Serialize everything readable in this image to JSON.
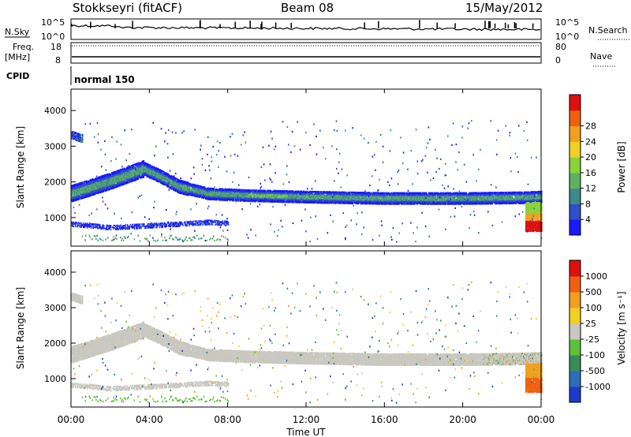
{
  "header": {
    "station": "Stokkseyri (fitACF)",
    "beam": "Beam 08",
    "date": "15/May/2012"
  },
  "chart_data": [
    {
      "type": "line",
      "panel": "noise",
      "left_label": "N.Sky",
      "right_label": "N.Search",
      "left_ticks": [
        "10^5",
        "10^0"
      ],
      "right_ticks": [
        "10^5",
        "10^0"
      ]
    },
    {
      "type": "line",
      "panel": "frequency",
      "left_label_line1": "Freq.",
      "left_label_line2": "[MHz]",
      "left_ticks": [
        18,
        8
      ],
      "right_label": "Nave",
      "right_ticks": [
        80,
        0
      ],
      "freq_value": 10.5
    },
    {
      "type": "table",
      "panel": "cpid",
      "label": "CPID",
      "mode": "normal 150"
    },
    {
      "type": "heatmap",
      "panel": "power",
      "ylabel": "Slant Range [km]",
      "yticks": [
        1000,
        2000,
        3000,
        4000
      ],
      "ylim": [
        200,
        4600
      ],
      "xlim": [
        0,
        24
      ],
      "colorbar": {
        "label": "Power [dB]",
        "ticks": [
          4,
          8,
          12,
          16,
          20,
          24,
          28
        ],
        "colors": [
          "#1a1aff",
          "#2e50c8",
          "#3c8a8a",
          "#5fb060",
          "#8ad23c",
          "#f0d020",
          "#f0a020",
          "#f06010",
          "#e01010"
        ]
      },
      "echo_bands": [
        {
          "name": "main",
          "points": [
            [
              0,
              1650
            ],
            [
              1,
              1820
            ],
            [
              2,
              2000
            ],
            [
              3,
              2200
            ],
            [
              3.7,
              2350
            ],
            [
              4.5,
              2150
            ],
            [
              5.5,
              1850
            ],
            [
              7,
              1650
            ],
            [
              9,
              1600
            ],
            [
              12,
              1560
            ],
            [
              16,
              1520
            ],
            [
              20,
              1520
            ],
            [
              23,
              1540
            ],
            [
              24,
              1560
            ]
          ]
        },
        {
          "name": "upper",
          "points": [
            [
              0,
              3300
            ],
            [
              0.5,
              3200
            ]
          ]
        },
        {
          "name": "low",
          "points": [
            [
              0,
              800
            ],
            [
              2,
              700
            ],
            [
              5,
              780
            ],
            [
              7,
              850
            ],
            [
              8,
              820
            ]
          ]
        }
      ]
    },
    {
      "type": "heatmap",
      "panel": "velocity",
      "ylabel": "Slant Range [km]",
      "xlabel": "Time UT",
      "yticks": [
        1000,
        2000,
        3000,
        4000
      ],
      "ylim": [
        200,
        4600
      ],
      "xlim": [
        0,
        24
      ],
      "xticks": [
        "00:00",
        "04:00",
        "08:00",
        "12:00",
        "16:00",
        "20:00",
        "00:00"
      ],
      "colorbar": {
        "label": "Velocity [m s⁻¹]",
        "ticks": [
          "1000",
          "500",
          "100",
          "25",
          "-25",
          "-100",
          "-500",
          "-1000"
        ],
        "colors": [
          "#1a3cc8",
          "#2e6eb8",
          "#3c8a5a",
          "#5fc03c",
          "#c8c8c0",
          "#f0d020",
          "#f0a020",
          "#f06010",
          "#e01010"
        ]
      }
    }
  ]
}
